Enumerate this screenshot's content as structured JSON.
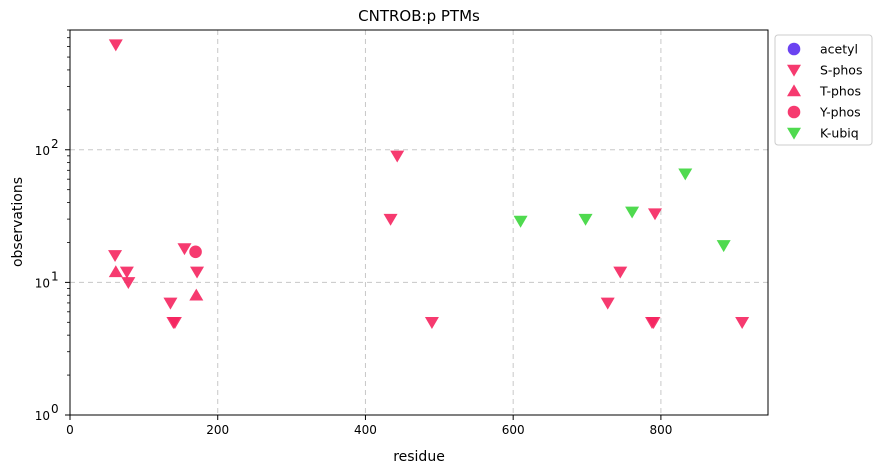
{
  "chart_data": {
    "type": "scatter",
    "title": "CNTROB:p PTMs",
    "xlabel": "residue",
    "ylabel": "observations",
    "xlim": [
      0,
      945
    ],
    "ylim": [
      1,
      800
    ],
    "yscale": "log",
    "grid": true,
    "legend_position": "outside-right-top",
    "x_ticks": [
      0,
      200,
      400,
      600,
      800
    ],
    "x_tick_labels": [
      "0",
      "200",
      "400",
      "600",
      "800"
    ],
    "y_ticks": [
      1,
      10,
      100
    ],
    "y_tick_labels": [
      "10",
      "10",
      "10"
    ],
    "y_tick_exponents": [
      "0",
      "1",
      "2"
    ],
    "series": [
      {
        "name": "acetyl",
        "marker": "circle",
        "color": "#5b2ff0",
        "points": []
      },
      {
        "name": "S-phos",
        "marker": "triangle-down",
        "color": "#f5255f",
        "points": [
          [
            62,
            620
          ],
          [
            61,
            16
          ],
          [
            77,
            12
          ],
          [
            79,
            10
          ],
          [
            136,
            7
          ],
          [
            140,
            5
          ],
          [
            142,
            5
          ],
          [
            155,
            18
          ],
          [
            172,
            12
          ],
          [
            434,
            30
          ],
          [
            443,
            90
          ],
          [
            490,
            5
          ],
          [
            745,
            12
          ],
          [
            728,
            7
          ],
          [
            788,
            5
          ],
          [
            790,
            5
          ],
          [
            792,
            33
          ],
          [
            910,
            5
          ]
        ]
      },
      {
        "name": "T-phos",
        "marker": "triangle-up",
        "color": "#f5255f",
        "points": [
          [
            62,
            12
          ],
          [
            171,
            8
          ]
        ]
      },
      {
        "name": "Y-phos",
        "marker": "circle",
        "color": "#f5255f",
        "points": [
          [
            170,
            17
          ]
        ]
      },
      {
        "name": "K-ubiq",
        "marker": "triangle-down",
        "color": "#3cd63c",
        "points": [
          [
            610,
            29
          ],
          [
            698,
            30
          ],
          [
            761,
            34
          ],
          [
            833,
            66
          ],
          [
            885,
            19
          ]
        ]
      }
    ]
  }
}
